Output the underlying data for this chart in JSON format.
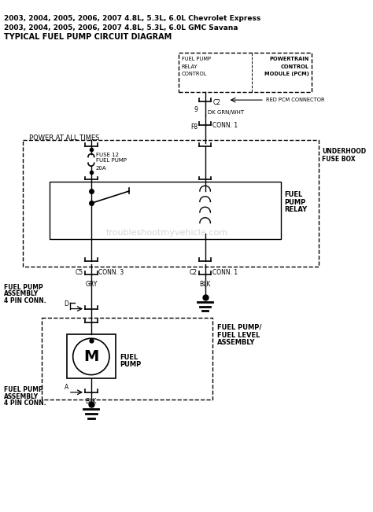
{
  "title_line1": "2003, 2004, 2005, 2006, 2007 4.8L, 5.3L, 6.0L Chevrolet Express",
  "title_line2": "2003, 2004, 2005, 2006, 2007 4.8L, 5.3L, 6.0L GMC Savana",
  "title_line3": "TYPICAL FUEL PUMP CIRCUIT DIAGRAM",
  "watermark": "troubleshootmyvehicle.com",
  "bg_color": "#ffffff",
  "line_color": "#000000"
}
